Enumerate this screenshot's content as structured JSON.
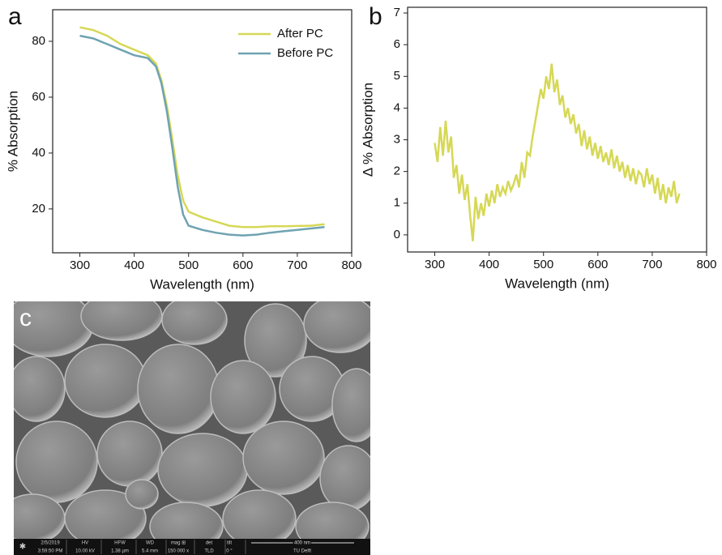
{
  "chart_data": [
    {
      "type": "line",
      "label": "a",
      "xlabel": "Wavelength (nm)",
      "ylabel": "% Absorption",
      "xlim": [
        250,
        800
      ],
      "xticks": [
        300,
        400,
        500,
        600,
        700,
        800
      ],
      "ylim": [
        4.3,
        91.3
      ],
      "yticks": [
        20,
        40,
        60,
        80
      ],
      "legend": "upper right",
      "x": [
        300,
        325,
        350,
        375,
        400,
        425,
        440,
        450,
        460,
        470,
        480,
        490,
        500,
        525,
        550,
        575,
        600,
        625,
        650,
        675,
        700,
        725,
        750
      ],
      "series": [
        {
          "name": "After PC",
          "color": "#d6d856",
          "values": [
            85,
            84,
            82,
            79,
            77,
            75,
            72,
            66,
            57,
            45,
            32,
            23,
            19,
            17,
            15.5,
            14,
            13.5,
            13.5,
            13.8,
            13.8,
            13.9,
            14,
            14.5
          ]
        },
        {
          "name": "Before PC",
          "color": "#6fa3b1",
          "values": [
            82,
            81,
            79,
            77,
            75,
            74,
            71,
            65,
            55,
            42,
            28,
            18,
            14,
            12.5,
            11.5,
            10.8,
            10.5,
            10.8,
            11.5,
            12,
            12.5,
            13,
            13.5
          ]
        }
      ]
    },
    {
      "type": "line",
      "label": "b",
      "xlabel": "Wavelength (nm)",
      "ylabel": "Δ % Absorption",
      "xlim": [
        250,
        800
      ],
      "xticks": [
        300,
        400,
        500,
        600,
        700,
        800
      ],
      "ylim": [
        -0.54,
        7.18
      ],
      "yticks": [
        0,
        1,
        2,
        3,
        4,
        5,
        6,
        7
      ],
      "x": [
        300,
        305,
        310,
        315,
        320,
        325,
        330,
        335,
        340,
        345,
        350,
        355,
        360,
        365,
        370,
        375,
        380,
        385,
        390,
        395,
        400,
        405,
        410,
        415,
        420,
        425,
        430,
        435,
        440,
        445,
        450,
        455,
        460,
        465,
        470,
        475,
        480,
        485,
        490,
        495,
        500,
        505,
        510,
        515,
        520,
        525,
        530,
        535,
        540,
        545,
        550,
        555,
        560,
        565,
        570,
        575,
        580,
        585,
        590,
        595,
        600,
        605,
        610,
        615,
        620,
        625,
        630,
        635,
        640,
        645,
        650,
        655,
        660,
        665,
        670,
        675,
        680,
        685,
        690,
        695,
        700,
        705,
        710,
        715,
        720,
        725,
        730,
        735,
        740,
        745,
        750
      ],
      "series": [
        {
          "color": "#d6d856",
          "values": [
            2.9,
            2.3,
            3.4,
            2.5,
            3.6,
            2.6,
            3.1,
            1.8,
            2.2,
            1.3,
            1.9,
            1.1,
            1.6,
            0.6,
            -0.2,
            1.2,
            0.5,
            1.0,
            0.6,
            1.3,
            0.9,
            1.4,
            1.0,
            1.6,
            1.2,
            1.5,
            1.3,
            1.7,
            1.4,
            1.6,
            1.9,
            1.5,
            2.3,
            1.8,
            2.6,
            2.5,
            3.1,
            3.6,
            4.1,
            4.6,
            4.3,
            5.0,
            4.6,
            5.4,
            4.5,
            4.9,
            4.1,
            4.4,
            3.7,
            4.0,
            3.5,
            3.8,
            3.2,
            3.5,
            2.8,
            3.3,
            2.7,
            3.1,
            2.5,
            2.9,
            2.4,
            2.8,
            2.3,
            2.6,
            2.2,
            2.7,
            2.1,
            2.5,
            2.0,
            2.3,
            1.8,
            2.2,
            1.7,
            2.1,
            1.6,
            2.0,
            1.9,
            1.5,
            2.1,
            1.6,
            1.9,
            1.3,
            1.8,
            1.1,
            1.6,
            1.0,
            1.5,
            1.2,
            1.7,
            1.0,
            1.3
          ]
        }
      ]
    }
  ],
  "panel_c": {
    "label": "c",
    "info": [
      {
        "top": "2/5/2019",
        "bottom": "3:59:50 PM"
      },
      {
        "top": "HV",
        "bottom": "10.00 kV"
      },
      {
        "top": "HFW",
        "bottom": "1.38 µm"
      },
      {
        "top": "WD",
        "bottom": "5.4 mm"
      },
      {
        "top": "mag ⊞",
        "bottom": "150 000 x"
      },
      {
        "top": "det",
        "bottom": "TLD"
      },
      {
        "top": "tilt",
        "bottom": "0 °"
      }
    ],
    "scale_bar": "400 nm",
    "footer": "TU Delft"
  }
}
